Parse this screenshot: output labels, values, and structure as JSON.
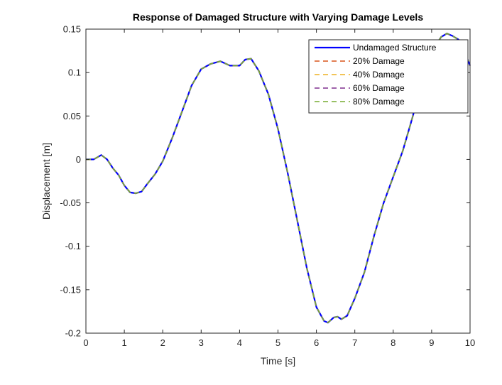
{
  "chart_data": {
    "type": "line",
    "title": "Response of Damaged Structure with Varying Damage Levels",
    "xlabel": "Time [s]",
    "ylabel": "Displacement [m]",
    "xlim": [
      0,
      10
    ],
    "ylim": [
      -0.2,
      0.15
    ],
    "xticks": [
      0,
      1,
      2,
      3,
      4,
      5,
      6,
      7,
      8,
      9,
      10
    ],
    "yticks": [
      -0.2,
      -0.15,
      -0.1,
      -0.05,
      0,
      0.05,
      0.1,
      0.15
    ],
    "xtick_labels": [
      "0",
      "1",
      "2",
      "3",
      "4",
      "5",
      "6",
      "7",
      "8",
      "9",
      "10"
    ],
    "ytick_labels": [
      "-0.2",
      "-0.15",
      "-0.1",
      "-0.05",
      "0",
      "0.05",
      "0.1",
      "0.15"
    ],
    "grid": false,
    "legend_position": "top-right",
    "x": [
      0,
      0.2,
      0.4,
      0.55,
      0.7,
      0.85,
      1.0,
      1.15,
      1.3,
      1.45,
      1.6,
      1.8,
      2.0,
      2.25,
      2.5,
      2.75,
      3.0,
      3.25,
      3.5,
      3.75,
      4.0,
      4.15,
      4.3,
      4.5,
      4.75,
      5.0,
      5.25,
      5.5,
      5.75,
      6.0,
      6.2,
      6.3,
      6.45,
      6.55,
      6.65,
      6.8,
      7.0,
      7.25,
      7.5,
      7.75,
      8.0,
      8.25,
      8.5,
      8.75,
      9.0,
      9.25,
      9.4,
      9.55,
      9.7,
      9.85,
      10.0
    ],
    "series": [
      {
        "name": "Undamaged Structure",
        "color": "#0000ff",
        "style": "solid",
        "values": [
          0.0,
          0.0,
          0.005,
          0.0,
          -0.01,
          -0.018,
          -0.03,
          -0.038,
          -0.039,
          -0.037,
          -0.028,
          -0.017,
          -0.002,
          0.025,
          0.055,
          0.085,
          0.104,
          0.11,
          0.113,
          0.108,
          0.108,
          0.115,
          0.116,
          0.102,
          0.075,
          0.035,
          -0.015,
          -0.07,
          -0.125,
          -0.17,
          -0.186,
          -0.188,
          -0.182,
          -0.181,
          -0.184,
          -0.18,
          -0.16,
          -0.13,
          -0.088,
          -0.05,
          -0.02,
          0.01,
          0.048,
          0.09,
          0.125,
          0.141,
          0.145,
          0.142,
          0.138,
          0.125,
          0.108
        ]
      },
      {
        "name": "20% Damage",
        "color": "#d95319",
        "style": "dashed",
        "values": [
          0.0,
          0.0,
          0.005,
          0.0,
          -0.01,
          -0.018,
          -0.03,
          -0.038,
          -0.039,
          -0.037,
          -0.028,
          -0.017,
          -0.002,
          0.025,
          0.055,
          0.085,
          0.104,
          0.11,
          0.113,
          0.108,
          0.108,
          0.115,
          0.116,
          0.102,
          0.075,
          0.035,
          -0.015,
          -0.07,
          -0.125,
          -0.17,
          -0.186,
          -0.188,
          -0.182,
          -0.181,
          -0.184,
          -0.18,
          -0.16,
          -0.13,
          -0.088,
          -0.05,
          -0.02,
          0.01,
          0.048,
          0.09,
          0.125,
          0.141,
          0.145,
          0.142,
          0.138,
          0.125,
          0.108
        ]
      },
      {
        "name": "40% Damage",
        "color": "#edb120",
        "style": "dashed",
        "values": [
          0.0,
          0.0,
          0.005,
          0.0,
          -0.01,
          -0.018,
          -0.03,
          -0.038,
          -0.039,
          -0.037,
          -0.028,
          -0.017,
          -0.002,
          0.025,
          0.055,
          0.085,
          0.104,
          0.11,
          0.113,
          0.108,
          0.108,
          0.115,
          0.116,
          0.102,
          0.075,
          0.035,
          -0.015,
          -0.07,
          -0.125,
          -0.17,
          -0.186,
          -0.188,
          -0.182,
          -0.181,
          -0.184,
          -0.18,
          -0.16,
          -0.13,
          -0.088,
          -0.05,
          -0.02,
          0.01,
          0.048,
          0.09,
          0.125,
          0.141,
          0.145,
          0.142,
          0.138,
          0.125,
          0.108
        ]
      },
      {
        "name": "60% Damage",
        "color": "#7e2f8e",
        "style": "dashed",
        "values": [
          0.0,
          0.0,
          0.005,
          0.0,
          -0.01,
          -0.018,
          -0.03,
          -0.038,
          -0.039,
          -0.037,
          -0.028,
          -0.017,
          -0.002,
          0.025,
          0.055,
          0.085,
          0.104,
          0.11,
          0.113,
          0.108,
          0.108,
          0.115,
          0.116,
          0.102,
          0.075,
          0.035,
          -0.015,
          -0.07,
          -0.125,
          -0.17,
          -0.186,
          -0.188,
          -0.182,
          -0.181,
          -0.184,
          -0.18,
          -0.16,
          -0.13,
          -0.088,
          -0.05,
          -0.02,
          0.01,
          0.048,
          0.09,
          0.125,
          0.141,
          0.145,
          0.142,
          0.138,
          0.125,
          0.108
        ]
      },
      {
        "name": "80% Damage",
        "color": "#77ac30",
        "style": "dashed",
        "values": [
          0.0,
          0.0,
          0.005,
          0.0,
          -0.01,
          -0.018,
          -0.03,
          -0.038,
          -0.039,
          -0.037,
          -0.028,
          -0.017,
          -0.002,
          0.025,
          0.055,
          0.085,
          0.104,
          0.11,
          0.113,
          0.108,
          0.108,
          0.115,
          0.116,
          0.102,
          0.075,
          0.035,
          -0.015,
          -0.07,
          -0.125,
          -0.17,
          -0.186,
          -0.188,
          -0.182,
          -0.181,
          -0.184,
          -0.18,
          -0.16,
          -0.13,
          -0.088,
          -0.05,
          -0.02,
          0.01,
          0.048,
          0.09,
          0.125,
          0.141,
          0.145,
          0.142,
          0.138,
          0.125,
          0.108
        ]
      }
    ]
  }
}
